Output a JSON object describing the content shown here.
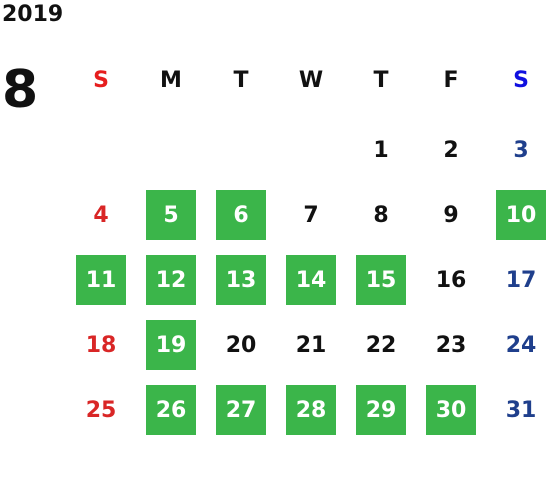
{
  "year": "2019",
  "month": "8",
  "weekdays": [
    "S",
    "M",
    "T",
    "W",
    "T",
    "F",
    "S"
  ],
  "weeks": [
    [
      null,
      null,
      null,
      null,
      {
        "text": "1",
        "highlighted": false
      },
      {
        "text": "2",
        "highlighted": false
      },
      {
        "text": "3",
        "highlighted": false
      }
    ],
    [
      {
        "text": "4",
        "highlighted": false
      },
      {
        "text": "5",
        "highlighted": true
      },
      {
        "text": "6",
        "highlighted": true
      },
      {
        "text": "7",
        "highlighted": false
      },
      {
        "text": "8",
        "highlighted": false
      },
      {
        "text": "9",
        "highlighted": false
      },
      {
        "text": "10",
        "highlighted": true
      }
    ],
    [
      {
        "text": "11",
        "highlighted": true
      },
      {
        "text": "12",
        "highlighted": true
      },
      {
        "text": "13",
        "highlighted": true
      },
      {
        "text": "14",
        "highlighted": true
      },
      {
        "text": "15",
        "highlighted": true
      },
      {
        "text": "16",
        "highlighted": false
      },
      {
        "text": "17",
        "highlighted": false
      }
    ],
    [
      {
        "text": "18",
        "highlighted": false
      },
      {
        "text": "19",
        "highlighted": true
      },
      {
        "text": "20",
        "highlighted": false
      },
      {
        "text": "21",
        "highlighted": false
      },
      {
        "text": "22",
        "highlighted": false
      },
      {
        "text": "23",
        "highlighted": false
      },
      {
        "text": "24",
        "highlighted": false
      }
    ],
    [
      {
        "text": "25",
        "highlighted": false
      },
      {
        "text": "26",
        "highlighted": true
      },
      {
        "text": "27",
        "highlighted": true
      },
      {
        "text": "28",
        "highlighted": true
      },
      {
        "text": "29",
        "highlighted": true
      },
      {
        "text": "30",
        "highlighted": true
      },
      {
        "text": "31",
        "highlighted": false
      }
    ]
  ]
}
